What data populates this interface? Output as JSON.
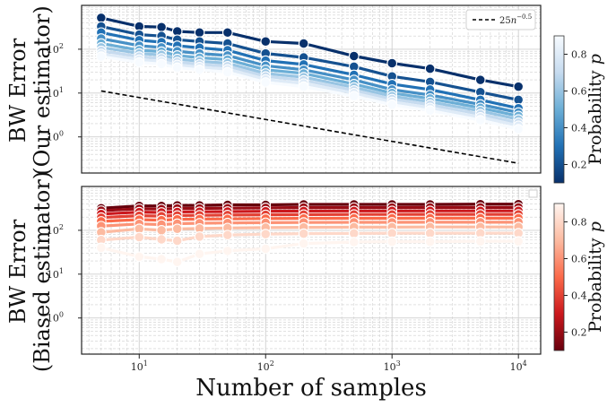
{
  "chart_data": [
    {
      "type": "line",
      "panel": "top",
      "ylabel_line1": "BW Error",
      "ylabel_line2": "(Our estimator)",
      "xscale": "log",
      "yscale": "log",
      "xlim": [
        3.5,
        15000
      ],
      "ylim": [
        0.15,
        1000
      ],
      "x": [
        5,
        10,
        15,
        20,
        30,
        50,
        100,
        200,
        500,
        1000,
        2000,
        5000,
        10000
      ],
      "series_names": [],
      "series": [
        {
          "p": 0.1,
          "values": [
            520,
            330,
            320,
            255,
            240,
            240,
            150,
            135,
            70,
            48,
            36,
            20,
            14
          ]
        },
        {
          "p": 0.2,
          "values": [
            330,
            215,
            200,
            165,
            150,
            135,
            80,
            65,
            40,
            24,
            18,
            10.5,
            7
          ]
        },
        {
          "p": 0.3,
          "values": [
            240,
            160,
            145,
            120,
            108,
            95,
            55,
            45,
            26,
            16,
            12,
            7,
            4.5
          ]
        },
        {
          "p": 0.4,
          "values": [
            175,
            120,
            110,
            90,
            80,
            72,
            42,
            34,
            20,
            12,
            9,
            5.5,
            3.6
          ]
        },
        {
          "p": 0.5,
          "values": [
            135,
            95,
            88,
            72,
            64,
            58,
            34,
            28,
            16,
            10,
            7.5,
            4.6,
            3.0
          ]
        },
        {
          "p": 0.6,
          "values": [
            110,
            80,
            74,
            60,
            53,
            48,
            28,
            23,
            13.5,
            8.5,
            6.3,
            3.9,
            2.5
          ]
        },
        {
          "p": 0.7,
          "values": [
            92,
            68,
            62,
            51,
            45,
            41,
            24,
            19.5,
            11.5,
            7.3,
            5.4,
            3.3,
            2.1
          ]
        },
        {
          "p": 0.8,
          "values": [
            78,
            58,
            53,
            44,
            39,
            35,
            20.5,
            16.5,
            10,
            6.3,
            4.6,
            2.8,
            1.8
          ]
        },
        {
          "p": 0.9,
          "values": [
            68,
            50,
            46,
            38,
            34,
            30,
            17.5,
            14,
            8.5,
            5.4,
            4.0,
            2.4,
            1.5
          ]
        }
      ],
      "reference_line": {
        "label": "25n^{-0.5}",
        "coef": 25,
        "exponent": -0.5
      },
      "legend": "top-right",
      "colorbar": {
        "label": "Probability p",
        "ticks": [
          0.2,
          0.4,
          0.6,
          0.8
        ],
        "range": [
          0.1,
          0.9
        ],
        "cmap": "Blues"
      }
    },
    {
      "type": "line",
      "panel": "bottom",
      "ylabel_line1": "BW Error",
      "ylabel_line2": "(Biased estimator)",
      "xlabel": "Number of samples",
      "xscale": "log",
      "yscale": "log",
      "xlim": [
        3.5,
        15000
      ],
      "ylim": [
        0.15,
        1000
      ],
      "x": [
        5,
        10,
        15,
        20,
        30,
        50,
        100,
        200,
        500,
        1000,
        2000,
        5000,
        10000
      ],
      "series_names": [],
      "series": [
        {
          "p": 0.1,
          "values": [
            320,
            360,
            360,
            370,
            370,
            380,
            380,
            390,
            390,
            390,
            390,
            395,
            395
          ]
        },
        {
          "p": 0.2,
          "values": [
            280,
            310,
            305,
            315,
            315,
            320,
            325,
            330,
            330,
            330,
            332,
            332,
            333
          ]
        },
        {
          "p": 0.3,
          "values": [
            235,
            260,
            255,
            262,
            265,
            268,
            272,
            275,
            276,
            277,
            278,
            278,
            278
          ]
        },
        {
          "p": 0.4,
          "values": [
            195,
            215,
            210,
            218,
            220,
            223,
            226,
            228,
            230,
            230,
            231,
            231,
            231
          ]
        },
        {
          "p": 0.5,
          "values": [
            160,
            175,
            170,
            178,
            180,
            182,
            185,
            187,
            188,
            188,
            189,
            189,
            189
          ]
        },
        {
          "p": 0.6,
          "values": [
            125,
            140,
            135,
            142,
            145,
            147,
            149,
            151,
            152,
            152,
            153,
            153,
            153
          ]
        },
        {
          "p": 0.7,
          "values": [
            90,
            108,
            100,
            108,
            110,
            113,
            115,
            117,
            118,
            118,
            119,
            119,
            119
          ]
        },
        {
          "p": 0.8,
          "values": [
            60,
            70,
            62,
            58,
            72,
            78,
            82,
            84,
            85,
            86,
            86,
            86,
            86
          ]
        },
        {
          "p": 0.9,
          "values": [
            40,
            25,
            22,
            19,
            29,
            34,
            38,
            50,
            54,
            55,
            55,
            56,
            56
          ]
        }
      ],
      "legend": "top-right",
      "colorbar": {
        "label": "Probability p",
        "ticks": [
          0.2,
          0.4,
          0.6,
          0.8
        ],
        "range": [
          0.1,
          0.9
        ],
        "cmap": "Reds"
      }
    }
  ],
  "x_tick_labels": {
    "t1": "10",
    "t1_exp": "1",
    "t2": "10",
    "t2_exp": "2",
    "t3": "10",
    "t3_exp": "3",
    "t4": "10",
    "t4_exp": "4"
  },
  "y_tick_labels": {
    "y0": "10",
    "y0_exp": "0",
    "y1": "10",
    "y1_exp": "1",
    "y2": "10",
    "y2_exp": "2"
  },
  "legend_text": {
    "coef": "25",
    "base": "n",
    "exp": "−0.5"
  },
  "colorbar_tick_labels": [
    "0.2",
    "0.4",
    "0.6",
    "0.8"
  ],
  "colorbar_label_word": "Probability",
  "colorbar_label_sym": "p",
  "colors": {
    "axes": "#222222",
    "grid": "#cccccc",
    "reference": "#000000"
  }
}
